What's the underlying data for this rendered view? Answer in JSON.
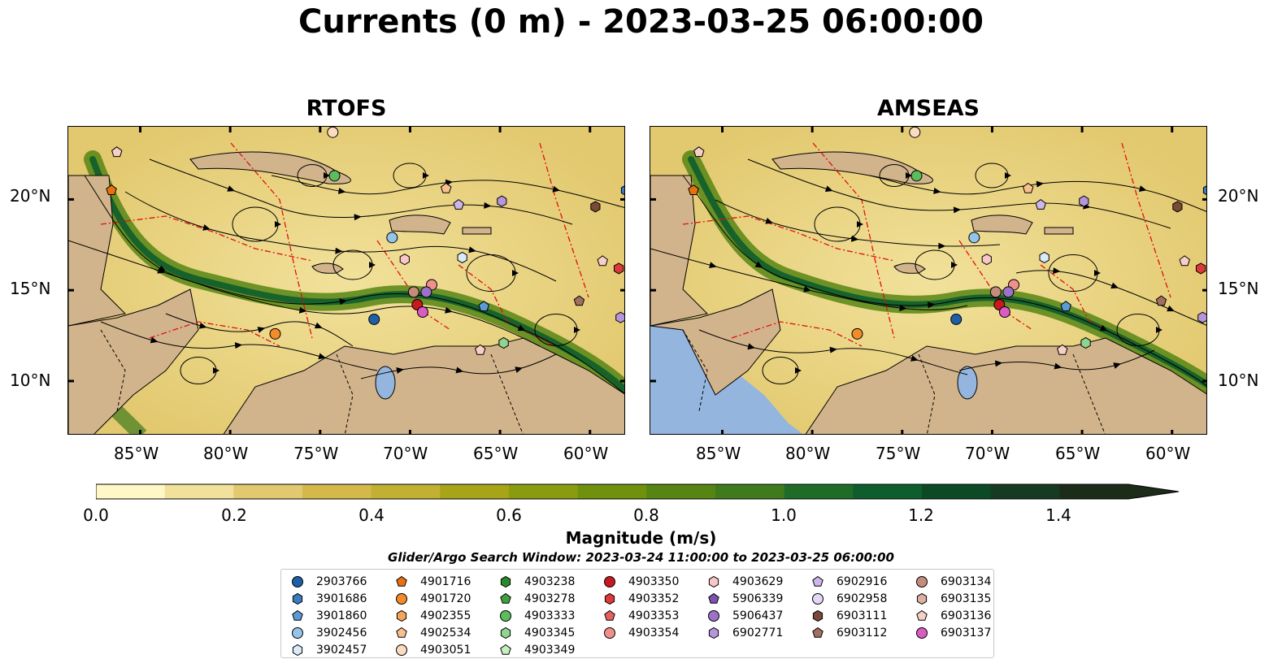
{
  "title": "Currents (0 m) - 2023-03-25 06:00:00",
  "panels": [
    {
      "title": "RTOFS",
      "lat_labels_side": "left"
    },
    {
      "title": "AMSEAS",
      "lat_labels_side": "right"
    }
  ],
  "map_extent": {
    "lon_min": -89,
    "lon_max": -58,
    "lat_min": 7,
    "lat_max": 24
  },
  "lon_ticks": [
    "85°W",
    "80°W",
    "75°W",
    "70°W",
    "65°W",
    "60°W"
  ],
  "lat_ticks": [
    "20°N",
    "15°N",
    "10°N"
  ],
  "colorbar": {
    "label": "Magnitude (m/s)",
    "ticks": [
      "0.0",
      "0.2",
      "0.4",
      "0.6",
      "0.8",
      "1.0",
      "1.2",
      "1.4"
    ],
    "min": 0.0,
    "max": 1.5,
    "extend": "max",
    "colors": [
      "#fff7c6",
      "#f1e19a",
      "#e2c86e",
      "#d4b94a",
      "#c1b032",
      "#a8a418",
      "#8a9b10",
      "#6f910e",
      "#568514",
      "#3f7b1c",
      "#1f6c28",
      "#0e5d2c",
      "#0b4a24",
      "#173a22",
      "#1b2c18"
    ]
  },
  "search_window": "Glider/Argo Search Window: 2023-03-24 11:00:00 to 2023-03-25 06:00:00",
  "legend": {
    "columns": [
      [
        {
          "id": "2903766",
          "marker": "circle",
          "color": "#1f5fa8"
        },
        {
          "id": "3901686",
          "marker": "hexagon",
          "color": "#3a7cc0"
        },
        {
          "id": "3901860",
          "marker": "pentagon",
          "color": "#5b9bd5"
        },
        {
          "id": "3902456",
          "marker": "circle",
          "color": "#95c4eb"
        },
        {
          "id": "3902457",
          "marker": "hexagon",
          "color": "#d9eafa"
        }
      ],
      [
        {
          "id": "4901716",
          "marker": "pentagon",
          "color": "#e8710f"
        },
        {
          "id": "4901720",
          "marker": "circle",
          "color": "#f28c2a"
        },
        {
          "id": "4902355",
          "marker": "hexagon",
          "color": "#f5a55a"
        },
        {
          "id": "4902534",
          "marker": "pentagon",
          "color": "#f8c08c"
        },
        {
          "id": "4903051",
          "marker": "circle",
          "color": "#fbdcc0"
        }
      ],
      [
        {
          "id": "4903238",
          "marker": "hexagon",
          "color": "#2a8a2a"
        },
        {
          "id": "4903278",
          "marker": "pentagon",
          "color": "#3fa03f"
        },
        {
          "id": "4903333",
          "marker": "circle",
          "color": "#5cbd5c"
        },
        {
          "id": "4903345",
          "marker": "hexagon",
          "color": "#8fd48f"
        },
        {
          "id": "4903349",
          "marker": "pentagon",
          "color": "#c5efc0"
        }
      ],
      [
        {
          "id": "4903350",
          "marker": "circle",
          "color": "#c8191e"
        },
        {
          "id": "4903352",
          "marker": "hexagon",
          "color": "#dc3a3a"
        },
        {
          "id": "4903353",
          "marker": "pentagon",
          "color": "#e66060"
        },
        {
          "id": "4903354",
          "marker": "circle",
          "color": "#f0908a"
        }
      ],
      [
        {
          "id": "4903629",
          "marker": "hexagon",
          "color": "#f9c7c5"
        },
        {
          "id": "5906339",
          "marker": "pentagon",
          "color": "#7b52b0"
        },
        {
          "id": "5906437",
          "marker": "circle",
          "color": "#9c72c8"
        },
        {
          "id": "6902771",
          "marker": "hexagon",
          "color": "#b596dc"
        }
      ],
      [
        {
          "id": "6902916",
          "marker": "pentagon",
          "color": "#cdb6ea"
        },
        {
          "id": "6902958",
          "marker": "circle",
          "color": "#e6d6f6"
        },
        {
          "id": "6903111",
          "marker": "hexagon",
          "color": "#7a4a38"
        },
        {
          "id": "6903112",
          "marker": "pentagon",
          "color": "#a07060"
        }
      ],
      [
        {
          "id": "6903134",
          "marker": "circle",
          "color": "#c48c7c"
        },
        {
          "id": "6903135",
          "marker": "hexagon",
          "color": "#dcb0a4"
        },
        {
          "id": "6903136",
          "marker": "pentagon",
          "color": "#f6d0c6"
        },
        {
          "id": "6903137",
          "marker": "circle",
          "color": "#d95cc2"
        }
      ]
    ]
  },
  "platforms": [
    {
      "id": "6903136",
      "lon": -86.3,
      "lat": 22.6
    },
    {
      "id": "4901716",
      "lon": -86.6,
      "lat": 20.5
    },
    {
      "id": "4903051",
      "lon": -74.3,
      "lat": 23.7
    },
    {
      "id": "4903333",
      "lon": -74.2,
      "lat": 21.3
    },
    {
      "id": "4902534",
      "lon": -68.0,
      "lat": 20.6
    },
    {
      "id": "6902916",
      "lon": -67.3,
      "lat": 19.7
    },
    {
      "id": "6902771",
      "lon": -64.9,
      "lat": 19.9
    },
    {
      "id": "6903111",
      "lon": -59.7,
      "lat": 19.6
    },
    {
      "id": "3901686",
      "lon": -58.0,
      "lat": 20.5
    },
    {
      "id": "3902456",
      "lon": -71.0,
      "lat": 17.9
    },
    {
      "id": "4903629",
      "lon": -70.3,
      "lat": 16.7
    },
    {
      "id": "3902457",
      "lon": -67.1,
      "lat": 16.8
    },
    {
      "id": "6903136",
      "lon": -59.3,
      "lat": 16.6
    },
    {
      "id": "4903352",
      "lon": -58.4,
      "lat": 16.2
    },
    {
      "id": "4903354",
      "lon": -68.8,
      "lat": 15.3
    },
    {
      "id": "6903134",
      "lon": -69.8,
      "lat": 14.9
    },
    {
      "id": "5906437",
      "lon": -69.1,
      "lat": 14.9
    },
    {
      "id": "4903350",
      "lon": -69.6,
      "lat": 14.2
    },
    {
      "id": "6903137",
      "lon": -69.3,
      "lat": 13.8
    },
    {
      "id": "3901860",
      "lon": -65.9,
      "lat": 14.1
    },
    {
      "id": "2903766",
      "lon": -72.0,
      "lat": 13.4
    },
    {
      "id": "6903112",
      "lon": -60.6,
      "lat": 14.4
    },
    {
      "id": "6902771",
      "lon": -58.3,
      "lat": 13.5
    },
    {
      "id": "4901720",
      "lon": -77.5,
      "lat": 12.6
    },
    {
      "id": "4903345",
      "lon": -64.8,
      "lat": 12.1
    },
    {
      "id": "6903136",
      "lon": -66.1,
      "lat": 11.7
    }
  ]
}
